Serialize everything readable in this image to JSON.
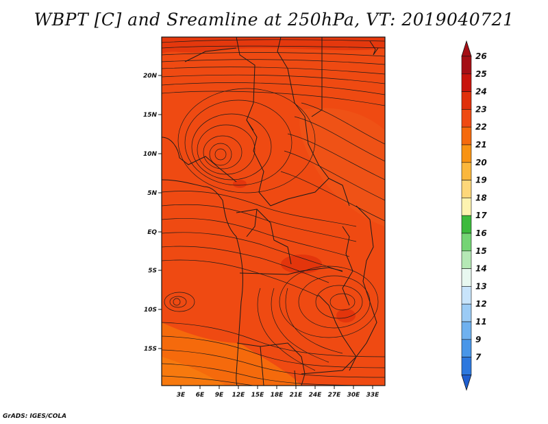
{
  "title": "WBPT [C] and Sreamline at 250hPa, VT: 2019040721",
  "footer": "GrADS: IGES/COLA",
  "map": {
    "lat_labels": [
      "20N",
      "15N",
      "10N",
      "5N",
      "EQ",
      "5S",
      "10S",
      "15S"
    ],
    "lon_labels": [
      "3E",
      "6E",
      "9E",
      "12E",
      "15E",
      "18E",
      "21E",
      "24E",
      "27E",
      "30E",
      "33E"
    ]
  },
  "colorbar": {
    "levels": [
      {
        "label": "26",
        "color": "#a50f15"
      },
      {
        "label": "25",
        "color": "#c8140c"
      },
      {
        "label": "24",
        "color": "#e0300b"
      },
      {
        "label": "23",
        "color": "#ef4a12"
      },
      {
        "label": "22",
        "color": "#f56a0c"
      },
      {
        "label": "21",
        "color": "#f89312"
      },
      {
        "label": "20",
        "color": "#fbb73c"
      },
      {
        "label": "19",
        "color": "#fdd77a"
      },
      {
        "label": "18",
        "color": "#fdf3b0"
      },
      {
        "label": "17",
        "color": "#3cba3c"
      },
      {
        "label": "16",
        "color": "#74d474"
      },
      {
        "label": "15",
        "color": "#b5e8b5"
      },
      {
        "label": "14",
        "color": "#e8f8f0"
      },
      {
        "label": "13",
        "color": "#c8e4fb"
      },
      {
        "label": "12",
        "color": "#9bcbf5"
      },
      {
        "label": "11",
        "color": "#6fb1ef"
      },
      {
        "label": "9",
        "color": "#4896e8"
      },
      {
        "label": "7",
        "color": "#2c78de"
      }
    ],
    "top_arrow_color": "#a50f15",
    "bottom_arrow_color": "#1f5fd0"
  }
}
